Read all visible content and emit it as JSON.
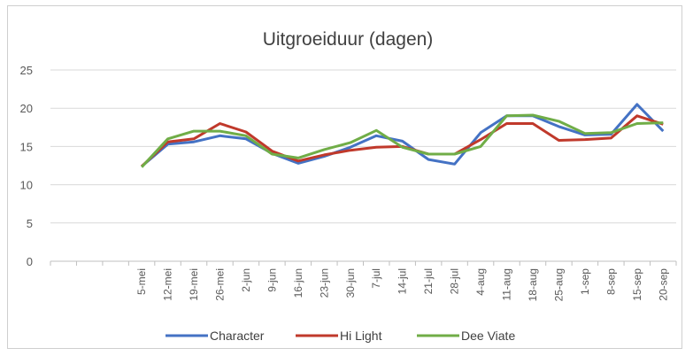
{
  "chart_data": {
    "type": "line",
    "title": "Uitgroeiduur (dagen)",
    "xlabel": "",
    "ylabel": "",
    "ylim": [
      0,
      25
    ],
    "yticks": [
      0,
      5,
      10,
      15,
      20,
      25
    ],
    "grid": true,
    "legend_position": "bottom",
    "categories": [
      "",
      "",
      "",
      "5-mei",
      "12-mei",
      "19-mei",
      "26-mei",
      "2-jun",
      "9-jun",
      "16-jun",
      "23-jun",
      "30-jun",
      "7-jul",
      "14-jul",
      "21-jul",
      "28-jul",
      "4-aug",
      "11-aug",
      "18-aug",
      "25-aug",
      "1-sep",
      "8-sep",
      "15-sep",
      "20-sep"
    ],
    "series": [
      {
        "name": "Character",
        "color": "#4472c4",
        "values": [
          null,
          null,
          null,
          12.4,
          15.3,
          15.6,
          16.4,
          16.0,
          14.1,
          12.8,
          13.7,
          14.9,
          16.4,
          15.7,
          13.3,
          12.7,
          16.8,
          19.0,
          19.0,
          17.6,
          16.5,
          16.6,
          20.5,
          17.0
        ]
      },
      {
        "name": "Hi Light",
        "color": "#c0392b",
        "values": [
          null,
          null,
          null,
          12.4,
          15.6,
          16.0,
          18.0,
          16.9,
          14.4,
          13.1,
          13.9,
          14.5,
          14.9,
          15.0,
          14.0,
          14.0,
          15.9,
          18.0,
          18.0,
          15.8,
          15.9,
          16.1,
          19.0,
          17.9
        ]
      },
      {
        "name": "Dee Viate",
        "color": "#70ad47",
        "values": [
          null,
          null,
          null,
          12.3,
          16.0,
          17.0,
          17.0,
          16.4,
          14.0,
          13.5,
          14.6,
          15.5,
          17.1,
          14.9,
          14.0,
          14.0,
          15.0,
          19.0,
          19.1,
          18.3,
          16.7,
          16.8,
          18.0,
          18.1
        ]
      }
    ]
  }
}
